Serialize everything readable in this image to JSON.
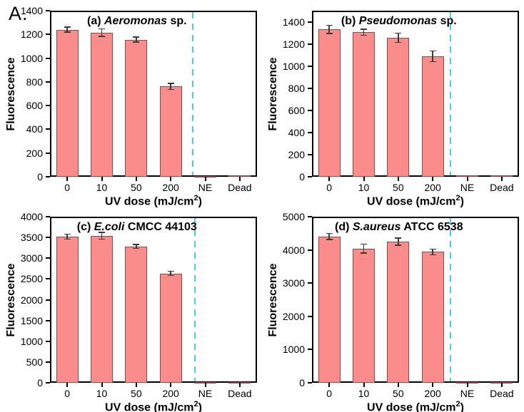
{
  "figure_label": "A.",
  "colors": {
    "bar_fill": "#FB8C8C",
    "bar_edge": "#8F4A45",
    "error_bar": "#3a3a3a",
    "divider": "#45CFE2",
    "axis": "#000000",
    "background": "#ffffff"
  },
  "chart_data": [
    {
      "type": "bar",
      "panel": "a",
      "title_parts": [
        {
          "text": "(a) ",
          "italic": false
        },
        {
          "text": "Aeromonas",
          "italic": true
        },
        {
          "text": " sp.",
          "italic": false
        }
      ],
      "ylabel": "Fluorescence",
      "xlabel": {
        "pre": "UV dose (mJ/cm",
        "sup": "2",
        "post": ")"
      },
      "categories": [
        "0",
        "10",
        "50",
        "200",
        "NE",
        "Dead"
      ],
      "values": [
        1240,
        1216,
        1156,
        762,
        4,
        10
      ],
      "errors": [
        20,
        30,
        20,
        25,
        0,
        0
      ],
      "ylim": [
        0,
        1400
      ],
      "yticks": [
        0,
        200,
        400,
        600,
        800,
        1000,
        1200,
        1400
      ],
      "divider_fraction": 0.69,
      "grid": false,
      "legend": "none"
    },
    {
      "type": "bar",
      "panel": "b",
      "title_parts": [
        {
          "text": "(b) ",
          "italic": false
        },
        {
          "text": "Pseudomonas",
          "italic": true
        },
        {
          "text": " sp.",
          "italic": false
        }
      ],
      "ylabel": "Fluorescence",
      "xlabel": {
        "pre": "UV dose (mJ/cm",
        "sup": "2",
        "post": ")"
      },
      "categories": [
        "0",
        "10",
        "50",
        "200",
        "NE",
        "Dead"
      ],
      "values": [
        1330,
        1305,
        1255,
        1088,
        10,
        16
      ],
      "errors": [
        35,
        25,
        40,
        48,
        0,
        0
      ],
      "ylim": [
        0,
        1500
      ],
      "yticks": [
        0,
        200,
        400,
        600,
        800,
        1000,
        1200,
        1400
      ],
      "divider_fraction": 0.67,
      "grid": false,
      "legend": "none"
    },
    {
      "type": "bar",
      "panel": "c",
      "title_parts": [
        {
          "text": "(c) ",
          "italic": false
        },
        {
          "text": "E.coli",
          "italic": true
        },
        {
          "text": " CMCC 44103",
          "italic": false
        }
      ],
      "ylabel": "Fluorescence",
      "xlabel": {
        "pre": "UV dose (mJ/cm",
        "sup": "2",
        "post": ")"
      },
      "categories": [
        "0",
        "10",
        "50",
        "200",
        "NE",
        "Dead"
      ],
      "values": [
        3520,
        3540,
        3285,
        2635,
        3,
        3
      ],
      "errors": [
        55,
        80,
        45,
        50,
        0,
        0
      ],
      "ylim": [
        0,
        4000
      ],
      "yticks": [
        0,
        500,
        1000,
        1500,
        2000,
        2500,
        3000,
        3500,
        4000
      ],
      "divider_fraction": 0.7,
      "grid": false,
      "legend": "none"
    },
    {
      "type": "bar",
      "panel": "d",
      "title_parts": [
        {
          "text": "(d) ",
          "italic": false
        },
        {
          "text": "S.aureus",
          "italic": true
        },
        {
          "text": " ATCC 6538",
          "italic": false
        }
      ],
      "ylabel": "Fluorescence",
      "xlabel": {
        "pre": "UV dose (mJ/cm",
        "sup": "2",
        "post": ")"
      },
      "categories": [
        "0",
        "10",
        "50",
        "200",
        "NE",
        "Dead"
      ],
      "values": [
        4400,
        4040,
        4250,
        3940,
        18,
        22
      ],
      "errors": [
        85,
        125,
        100,
        80,
        0,
        0
      ],
      "ylim": [
        0,
        5000
      ],
      "yticks": [
        0,
        1000,
        2000,
        3000,
        4000,
        5000
      ],
      "divider_fraction": 0.67,
      "grid": false,
      "legend": "none"
    }
  ]
}
